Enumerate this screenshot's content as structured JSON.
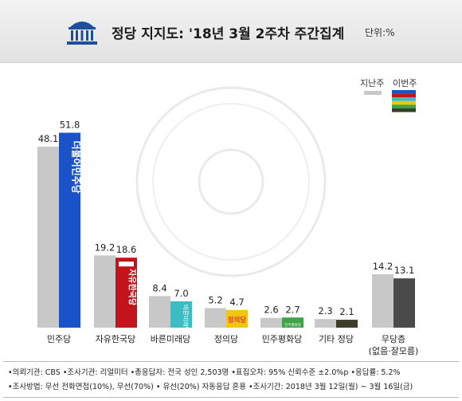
{
  "header": {
    "title": "정당 지지도: '18년 3월 2주차 주간집계",
    "unit": "단위:%"
  },
  "legend": {
    "prev": "지난주",
    "curr": "이번주"
  },
  "party_logos": {
    "democratic": "더불어민주당",
    "liberty": "자유한국당",
    "bareun": "바른미래당",
    "justice": "정의당",
    "peace": "민주평화당"
  },
  "colors": {
    "prev": "#c8c8c8",
    "democratic": "#1a53c8",
    "liberty": "#c4141b",
    "bareun": "#3dbcc4",
    "justice": "#f2c511",
    "peace": "#3fa348",
    "other": "#3c3c28",
    "none": "#4a4a4a"
  },
  "chart_data": {
    "type": "bar",
    "title": "정당 지지도: '18년 3월 2주차 주간집계",
    "categories": [
      "민주당",
      "자유한국당",
      "바른미래당",
      "정의당",
      "민주평화당",
      "기타 정당",
      "무당층"
    ],
    "category_sublabels": [
      "",
      "",
      "",
      "",
      "",
      "",
      "(없음·잘모름)"
    ],
    "series": [
      {
        "name": "지난주",
        "values": [
          48.1,
          19.2,
          8.4,
          5.2,
          2.6,
          2.3,
          14.2
        ]
      },
      {
        "name": "이번주",
        "values": [
          51.8,
          18.6,
          7.0,
          4.7,
          2.7,
          2.1,
          13.1
        ]
      }
    ],
    "ylim": [
      0,
      55
    ],
    "xlabel": "",
    "ylabel": "",
    "grid": false,
    "legend_position": "top-right"
  },
  "footer": {
    "line1": "•의뢰기관: CBS •조사기관: 리얼미터 •총응답자: 전국 성인 2,503명 •표집오차: 95% 신뢰수준 ±2.0%p •응답률: 5.2%",
    "line2": "•조사방법: 무선 전화면접(10%), 무선(70%) • 유선(20%) 자동응답 혼용 •조사기간: 2018년 3월 12일(월) ~ 3월 16일(금)"
  }
}
